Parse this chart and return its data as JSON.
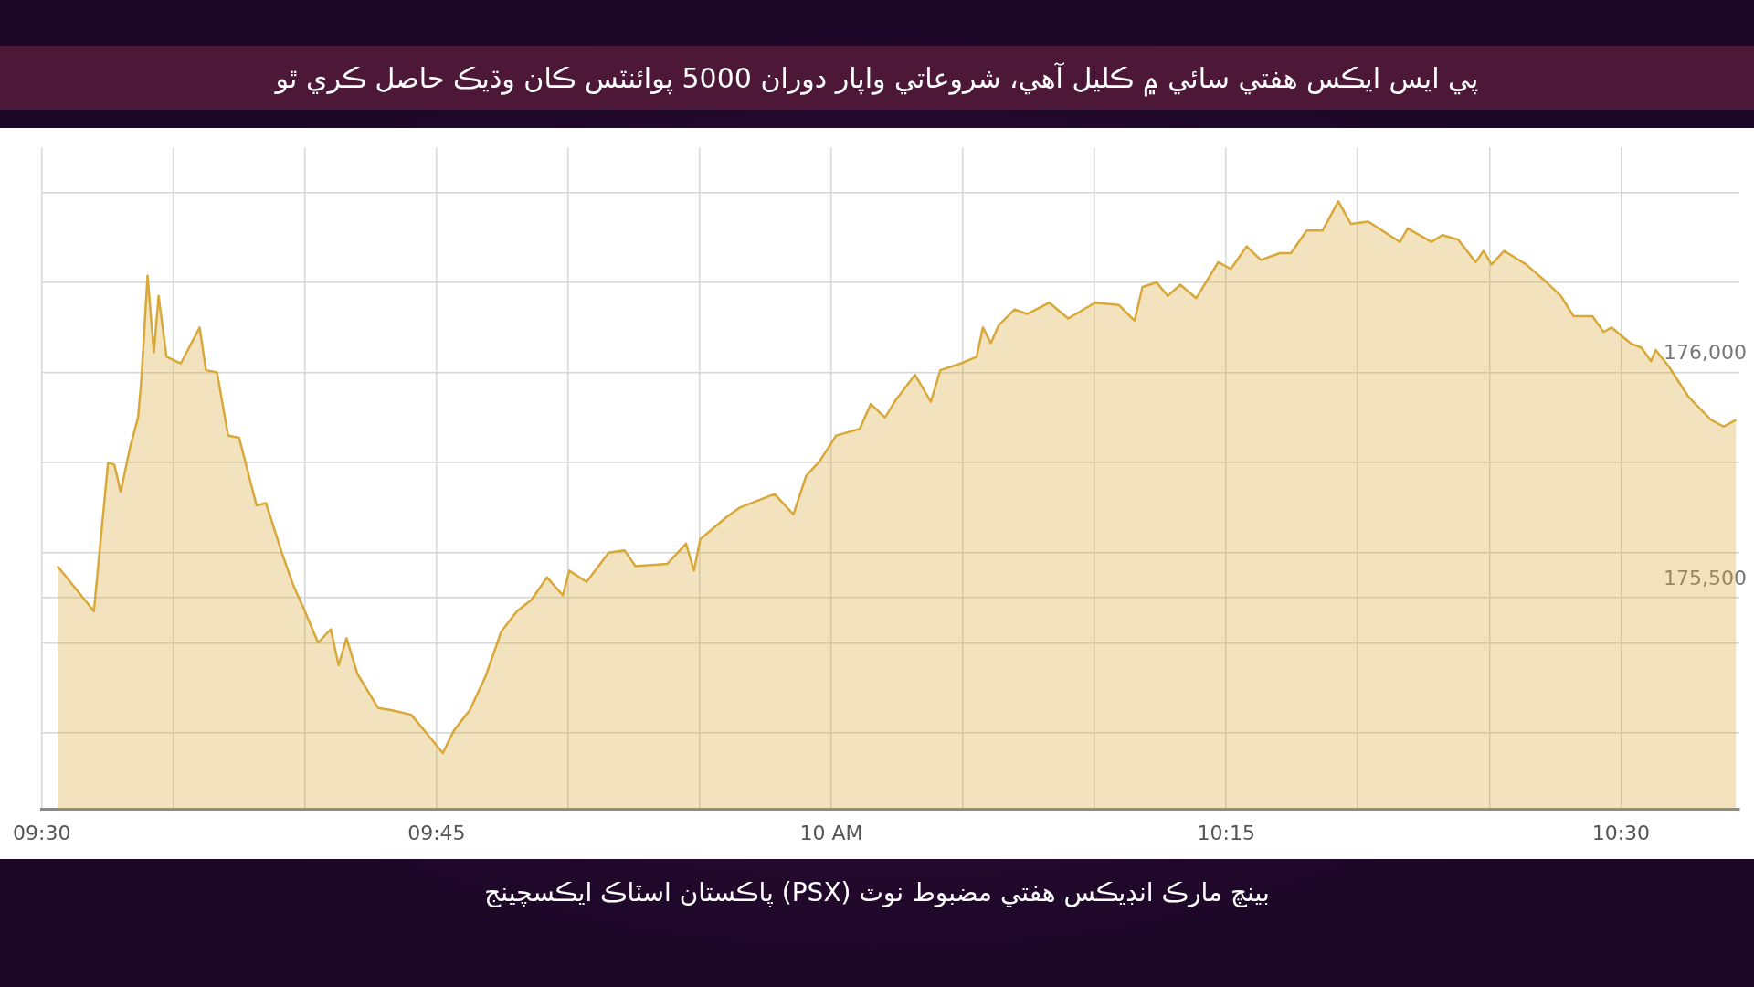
{
  "chart_data": {
    "type": "area",
    "title": "پي ايس ايڪس هفتي سائي ۾ ڪليل آهي، شروعاتي واپار دوران 5000 پوائنٽس ڪان وڌيڪ حاصل ڪري ٿو",
    "subtitle": "بينچ مارڪ انڊيڪس هفتي مضبوط نوٽ (PSX) پاڪستان اسٽاڪ ايڪسچينج",
    "x": [
      9.51,
      9.533,
      9.542,
      9.546,
      9.55,
      9.556,
      9.561,
      9.563,
      9.567,
      9.571,
      9.574,
      9.579,
      9.588,
      9.6,
      9.604,
      9.611,
      9.618,
      9.625,
      9.636,
      9.642,
      9.652,
      9.659,
      9.666,
      9.675,
      9.683,
      9.688,
      9.693,
      9.7,
      9.713,
      9.722,
      9.734,
      9.754,
      9.761,
      9.771,
      9.781,
      9.791,
      9.801,
      9.81,
      9.82,
      9.83,
      9.834,
      9.845,
      9.859,
      9.869,
      9.876,
      9.896,
      9.908,
      9.913,
      9.917,
      9.934,
      9.942,
      9.964,
      9.976,
      9.984,
      9.993,
      10.003,
      10.018,
      10.025,
      10.034,
      10.041,
      10.053,
      10.063,
      10.069,
      10.082,
      10.092,
      10.096,
      10.101,
      10.106,
      10.116,
      10.124,
      10.138,
      10.15,
      10.167,
      10.182,
      10.192,
      10.197,
      10.206,
      10.213,
      10.221,
      10.231,
      10.245,
      10.253,
      10.263,
      10.272,
      10.284,
      10.291,
      10.301,
      10.311,
      10.321,
      10.329,
      10.34,
      10.36,
      10.365,
      10.38,
      10.387,
      10.397,
      10.408,
      10.413,
      10.418,
      10.426,
      10.44,
      10.453,
      10.462,
      10.47,
      10.482,
      10.489,
      10.494,
      10.506,
      10.513,
      10.519,
      10.522,
      10.53,
      10.543,
      10.557,
      10.565,
      10.573
    ],
    "series": [
      {
        "color": "#d8a93a",
        "values": [
          175570,
          175470,
          175800,
          175795,
          175735,
          175835,
          175900,
          175980,
          176215,
          176045,
          176170,
          176035,
          176020,
          176100,
          176005,
          176000,
          175860,
          175855,
          175705,
          175710,
          175600,
          175530,
          175475,
          175400,
          175430,
          175350,
          175410,
          175330,
          175255,
          175250,
          175240,
          175155,
          175205,
          175250,
          175325,
          175425,
          175470,
          175495,
          175545,
          175505,
          175560,
          175535,
          175600,
          175605,
          175570,
          175575,
          175620,
          175560,
          175630,
          175680,
          175700,
          175730,
          175685,
          175770,
          175805,
          175860,
          175875,
          175930,
          175900,
          175940,
          175995,
          175935,
          176005,
          176020,
          176035,
          176100,
          176065,
          176105,
          176140,
          176130,
          176155,
          176120,
          176155,
          176150,
          176115,
          176190,
          176200,
          176170,
          176195,
          176165,
          176245,
          176230,
          176280,
          176250,
          176265,
          176265,
          176315,
          176315,
          176380,
          176330,
          176335,
          176290,
          176320,
          176290,
          176305,
          176295,
          176245,
          176270,
          176240,
          176270,
          176240,
          176200,
          176170,
          176125,
          176125,
          176090,
          176100,
          176065,
          176055,
          176025,
          176050,
          176015,
          175945,
          175895,
          175880,
          175895
        ]
      }
    ],
    "xlim": [
      9.5,
      10.575
    ],
    "xticks": [
      {
        "value": 9.5,
        "label": "09:30"
      },
      {
        "value": 9.5833,
        "label": null
      },
      {
        "value": 9.6667,
        "label": null
      },
      {
        "value": 9.75,
        "label": "09:45"
      },
      {
        "value": 9.8333,
        "label": null
      },
      {
        "value": 9.9167,
        "label": null
      },
      {
        "value": 10,
        "label": "10 AM"
      },
      {
        "value": 10.0833,
        "label": null
      },
      {
        "value": 10.1667,
        "label": null
      },
      {
        "value": 10.25,
        "label": "10:15"
      },
      {
        "value": 10.3333,
        "label": null
      },
      {
        "value": 10.4167,
        "label": null
      },
      {
        "value": 10.5,
        "label": "10:30"
      }
    ],
    "ylim": [
      175030,
      176500
    ],
    "yticks": [
      {
        "value": 175200,
        "label": null
      },
      {
        "value": 175400,
        "label": null
      },
      {
        "value": 175500,
        "label": "175,500"
      },
      {
        "value": 175600,
        "label": null
      },
      {
        "value": 175800,
        "label": null
      },
      {
        "value": 176000,
        "label": "176,000"
      },
      {
        "value": 176200,
        "label": null
      },
      {
        "value": 176400,
        "label": null
      }
    ],
    "grid": true,
    "marker": "none",
    "line_style": "solid"
  }
}
